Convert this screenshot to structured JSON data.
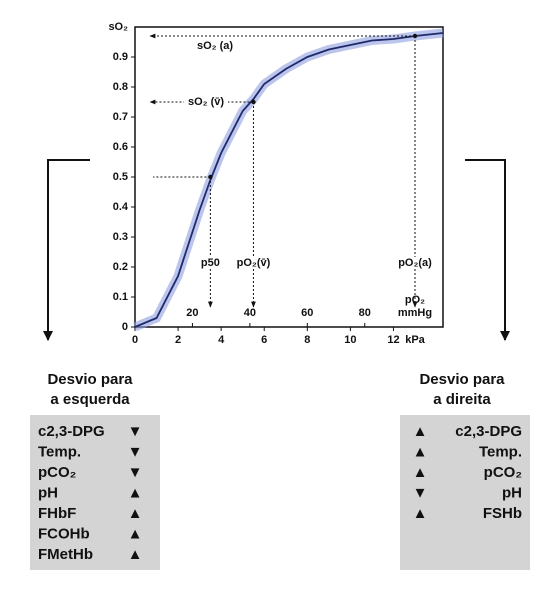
{
  "chart_data": {
    "type": "line",
    "x": [
      0,
      1,
      2,
      3,
      3.5,
      4,
      5,
      5.5,
      6,
      7,
      8,
      9,
      10,
      11,
      12,
      13,
      14.3
    ],
    "series": [
      {
        "color": "#1f2a6b",
        "values": [
          0,
          0.03,
          0.17,
          0.39,
          0.49,
          0.58,
          0.72,
          0.76,
          0.81,
          0.86,
          0.9,
          0.925,
          0.94,
          0.955,
          0.96,
          0.97,
          0.98
        ]
      }
    ],
    "band_color": "#8f9fe0",
    "xlim": [
      0,
      14.3
    ],
    "xticks": [
      0,
      2,
      4,
      6,
      8,
      10,
      12
    ],
    "xlabel": "kPa",
    "x2lim": [
      0,
      107.25
    ],
    "x2ticks": [
      20,
      40,
      60,
      80
    ],
    "x2label": "pO₂",
    "x2unit": "mmHg",
    "ylim": [
      0,
      1
    ],
    "yticks": [
      0,
      0.1,
      0.2,
      0.3,
      0.4,
      0.5,
      0.6,
      0.7,
      0.8,
      0.9
    ],
    "ylabel": "sO₂",
    "annotations": [
      {
        "s_label": "sO₂ (a)",
        "p_label": "pO₂(a)",
        "x": 13,
        "y": 0.97
      },
      {
        "s_label": "sO₂ (v̄)",
        "p_label": "pO₂(v̄)",
        "x": 5.5,
        "y": 0.75
      },
      {
        "p_label": "p50",
        "x": 3.5,
        "y": 0.5
      }
    ]
  },
  "panels": [
    {
      "title": [
        "Desvio para",
        "a esquerda"
      ],
      "rows": [
        [
          "c2,3-DPG",
          "▼"
        ],
        [
          "Temp.",
          "▼"
        ],
        [
          "pCO₂",
          "▼"
        ],
        [
          "pH",
          "▲"
        ],
        [
          "FHbF",
          "▲"
        ],
        [
          "FCOHb",
          "▲"
        ],
        [
          "FMetHb",
          "▲"
        ]
      ]
    },
    {
      "title": [
        "Desvio para",
        "a direita"
      ],
      "rows": [
        [
          "c2,3-DPG",
          "▲"
        ],
        [
          "Temp.",
          "▲"
        ],
        [
          "pCO₂",
          "▲"
        ],
        [
          "pH",
          "▼"
        ],
        [
          "FSHb",
          "▲"
        ]
      ]
    }
  ]
}
